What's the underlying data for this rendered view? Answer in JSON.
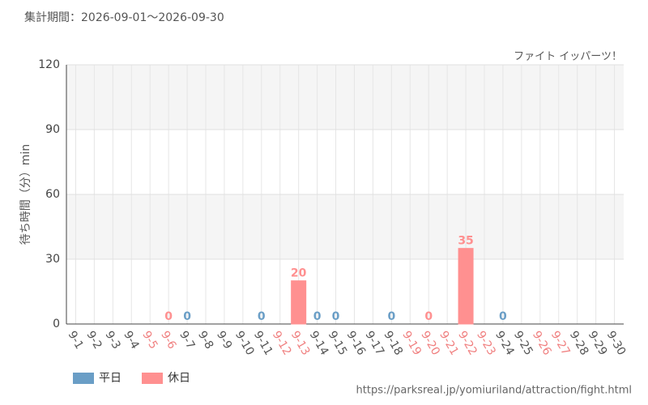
{
  "chart_data": {
    "type": "bar",
    "title": "集計期間：2026-09-01～2026-09-30",
    "annotation": "ファイト イッパーツ！",
    "y_label": "待ち時間（分）min",
    "source": "https://parksreal.jp/yomiuriland/attraction/fight.html",
    "categories": [
      "9-1",
      "9-2",
      "9-3",
      "9-4",
      "9-5",
      "9-6",
      "9-7",
      "9-8",
      "9-9",
      "9-10",
      "9-11",
      "9-12",
      "9-13",
      "9-14",
      "9-15",
      "9-16",
      "9-17",
      "9-18",
      "9-19",
      "9-20",
      "9-21",
      "9-22",
      "9-23",
      "9-24",
      "9-25",
      "9-26",
      "9-27",
      "9-28",
      "9-29",
      "9-30"
    ],
    "category_colors": [
      "#555",
      "#555",
      "#555",
      "#555",
      "#f08080",
      "#f08080",
      "#555",
      "#555",
      "#555",
      "#555",
      "#555",
      "#f08080",
      "#f08080",
      "#555",
      "#555",
      "#555",
      "#555",
      "#555",
      "#f08080",
      "#f08080",
      "#f08080",
      "#f08080",
      "#f08080",
      "#555",
      "#555",
      "#f08080",
      "#f08080",
      "#555",
      "#555",
      "#555"
    ],
    "series": [
      {
        "name": "平日",
        "color": "#6a9ec6",
        "values": [
          null,
          null,
          null,
          null,
          null,
          null,
          0,
          null,
          null,
          null,
          0,
          null,
          null,
          0,
          0,
          null,
          null,
          0,
          null,
          null,
          null,
          null,
          null,
          0,
          null,
          null,
          null,
          null,
          null,
          null
        ]
      },
      {
        "name": "休日",
        "color": "#ff9090",
        "values": [
          null,
          null,
          null,
          null,
          null,
          0,
          null,
          null,
          null,
          null,
          null,
          null,
          20,
          null,
          null,
          null,
          null,
          null,
          null,
          0,
          null,
          35,
          null,
          null,
          null,
          null,
          null,
          null,
          null,
          null
        ]
      }
    ],
    "ylim": [
      0,
      120
    ],
    "yticks": [
      0,
      30,
      60,
      90,
      120
    ],
    "grid": true
  }
}
